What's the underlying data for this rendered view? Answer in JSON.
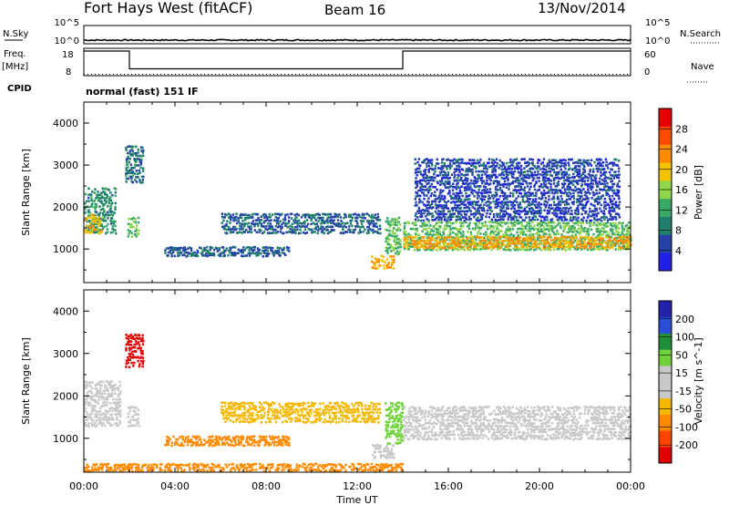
{
  "header": {
    "station": "Fort Hays West (fitACF)",
    "beam": "Beam 16",
    "date": "13/Nov/2014"
  },
  "noise_panel": {
    "left_label": "N.Sky",
    "left_ticks": [
      "10^5",
      "10^0"
    ],
    "right_ticks": [
      "10^5",
      "10^0"
    ],
    "right_label": "N.Search"
  },
  "freq_panel": {
    "left_label_1": "Freq.",
    "left_label_2": "[MHz]",
    "left_ticks": [
      "18",
      "8"
    ],
    "right_ticks": [
      "60",
      "0"
    ],
    "right_label": "Nave",
    "cpid_label": "CPID",
    "mode_text": "normal (fast) 151 IF"
  },
  "x_axis": {
    "ticks": [
      "00:00",
      "04:00",
      "08:00",
      "12:00",
      "16:00",
      "20:00",
      "00:00"
    ],
    "label": "Time UT"
  },
  "y_axis": {
    "label": "Slant Range [km]",
    "ticks": [
      "1000",
      "2000",
      "3000",
      "4000"
    ]
  },
  "power_colorbar": {
    "label": "Power [dB]",
    "ticks": [
      "4",
      "8",
      "12",
      "16",
      "20",
      "24",
      "28"
    ],
    "colors": [
      "#1f1fe6",
      "#2442a8",
      "#1f7f6a",
      "#3aa866",
      "#8fd64a",
      "#f2c200",
      "#ff8c00",
      "#ff4a00",
      "#e60000"
    ]
  },
  "velocity_colorbar": {
    "label": "Velocity [m s^-1]",
    "ticks": [
      "200",
      "100",
      "50",
      "15",
      "-15",
      "-50",
      "-100",
      "-200"
    ],
    "colors": [
      "#2222aa",
      "#2a4fd6",
      "#1f8f3a",
      "#6fd23a",
      "#c8c8c8",
      "#c8c8c8",
      "#f5b800",
      "#ff8a00",
      "#ff4500",
      "#e00000"
    ]
  },
  "chart_data": {
    "type": "heatmap",
    "title": "Fort Hays West (fitACF) Beam 16 13/Nov/2014",
    "xlabel": "Time UT",
    "ylabel": "Slant Range [km]",
    "xlim_hours": [
      0,
      24
    ],
    "ylim_km": [
      200,
      4500
    ],
    "noise_level": 1.0,
    "frequency_steps": [
      {
        "start_h": 0.0,
        "end_h": 2.0,
        "freq_mhz": 17
      },
      {
        "start_h": 2.0,
        "end_h": 14.0,
        "freq_mhz": 10.5
      },
      {
        "start_h": 14.0,
        "end_h": 24.0,
        "freq_mhz": 17
      }
    ],
    "nave": 3,
    "power_regions": [
      {
        "t0": 0.0,
        "t1": 1.4,
        "r0": 1400,
        "r1": 2500,
        "db": 10
      },
      {
        "t0": 0.0,
        "t1": 0.8,
        "r0": 1400,
        "r1": 1900,
        "db": 20
      },
      {
        "t0": 1.8,
        "t1": 2.6,
        "r0": 2600,
        "r1": 3500,
        "db": 8
      },
      {
        "t0": 1.9,
        "t1": 2.4,
        "r0": 1300,
        "r1": 1800,
        "db": 14
      },
      {
        "t0": 3.5,
        "t1": 9.0,
        "r0": 850,
        "r1": 1100,
        "db": 7
      },
      {
        "t0": 6.0,
        "t1": 13.0,
        "r0": 1400,
        "r1": 1900,
        "db": 7
      },
      {
        "t0": 12.6,
        "t1": 13.6,
        "r0": 550,
        "r1": 900,
        "db": 22
      },
      {
        "t0": 13.2,
        "t1": 13.9,
        "r0": 900,
        "r1": 1800,
        "db": 14
      },
      {
        "t0": 14.0,
        "t1": 24.0,
        "r0": 1000,
        "r1": 1700,
        "db": 14
      },
      {
        "t0": 14.0,
        "t1": 24.0,
        "r0": 1050,
        "r1": 1350,
        "db": 22
      },
      {
        "t0": 14.5,
        "t1": 23.5,
        "r0": 1700,
        "r1": 3200,
        "db": 5
      }
    ],
    "velocity_regions": [
      {
        "t0": 0.0,
        "t1": 1.6,
        "r0": 1300,
        "r1": 2400,
        "v": 0
      },
      {
        "t0": 1.8,
        "t1": 2.6,
        "r0": 2700,
        "r1": 3500,
        "v": -200
      },
      {
        "t0": 1.9,
        "t1": 2.4,
        "r0": 1300,
        "r1": 1800,
        "v": 0
      },
      {
        "t0": 3.5,
        "t1": 9.0,
        "r0": 850,
        "r1": 1100,
        "v": -50
      },
      {
        "t0": 6.0,
        "t1": 13.0,
        "r0": 1400,
        "r1": 1900,
        "v": -30
      },
      {
        "t0": 12.6,
        "t1": 13.6,
        "r0": 550,
        "r1": 900,
        "v": 0
      },
      {
        "t0": 13.2,
        "t1": 14.0,
        "r0": 900,
        "r1": 1900,
        "v": 30
      },
      {
        "t0": 14.0,
        "t1": 24.0,
        "r0": 1000,
        "r1": 1800,
        "v": 0
      },
      {
        "t0": 0.0,
        "t1": 14.0,
        "r0": 250,
        "r1": 450,
        "v": -50
      }
    ]
  }
}
